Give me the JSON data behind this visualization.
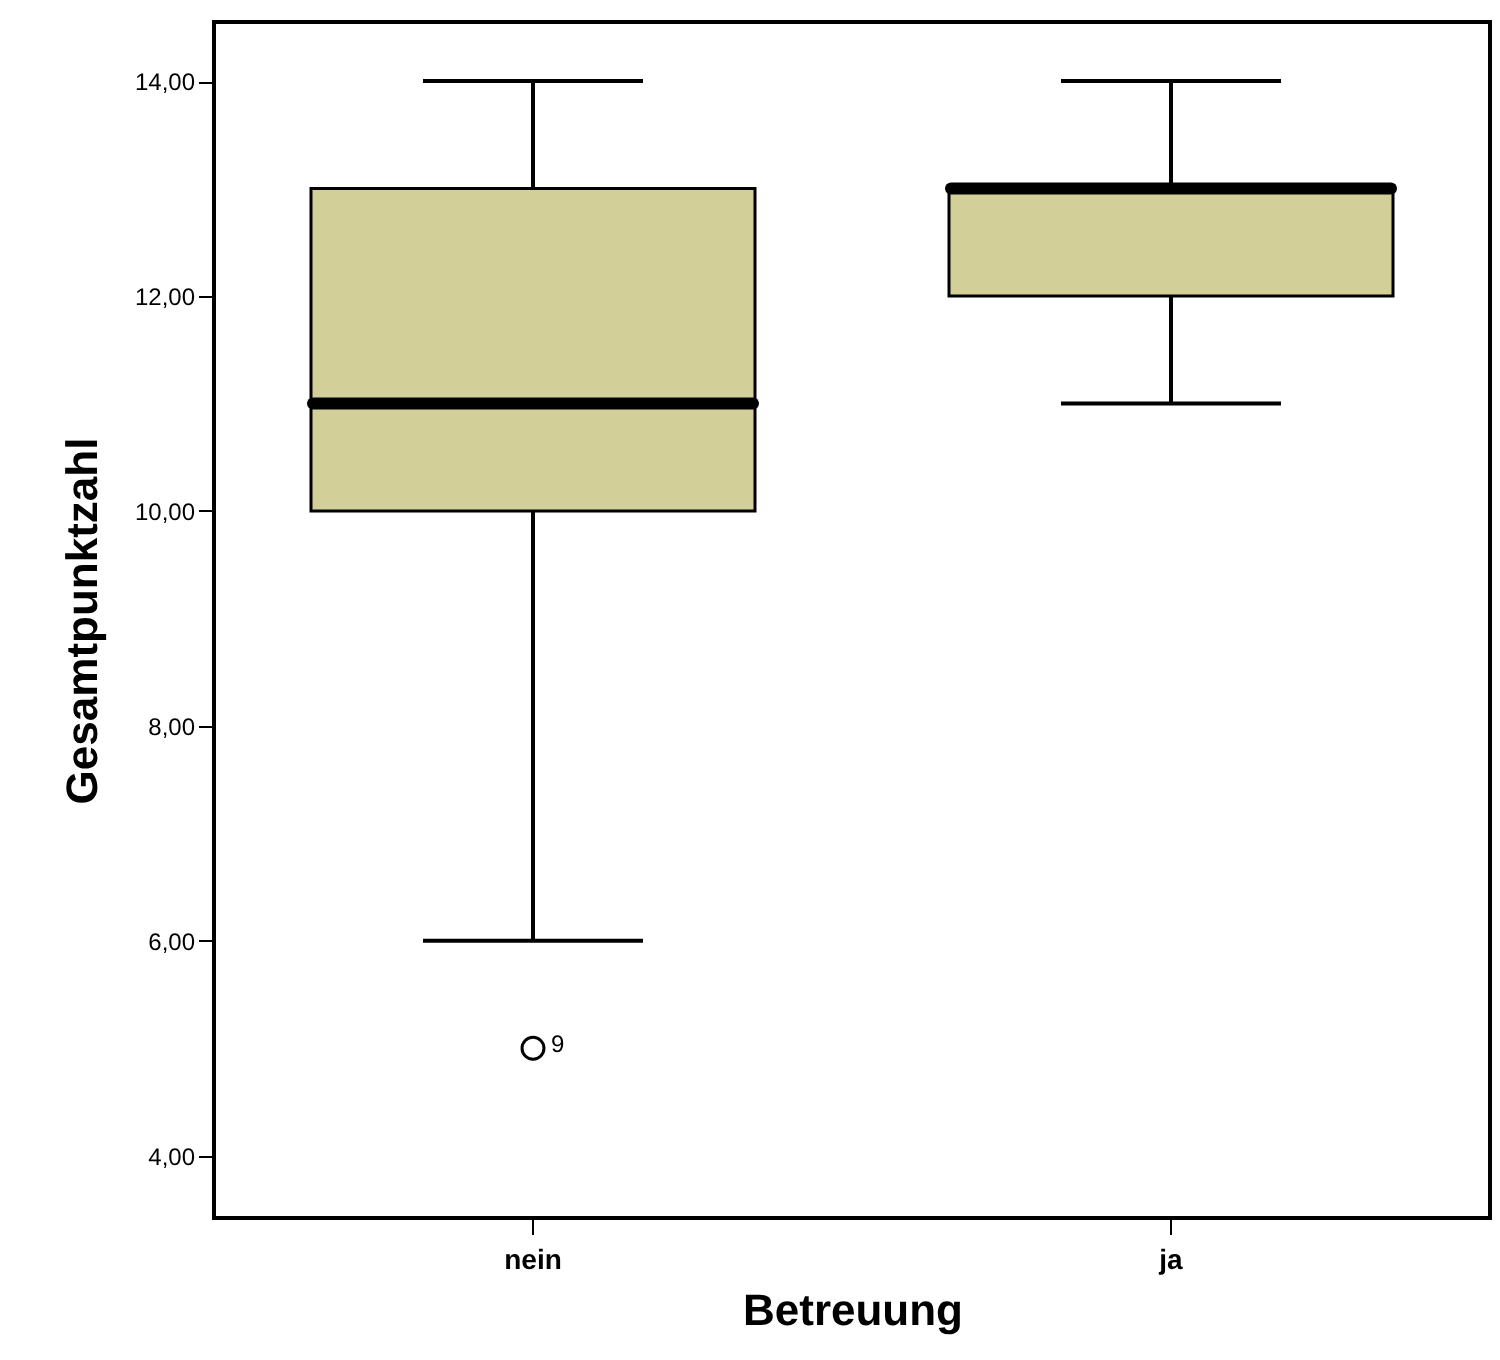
{
  "chart_data": {
    "type": "box",
    "xlabel": "Betreuung",
    "ylabel": "Gesamtpunktzahl",
    "categories": [
      "nein",
      "ja"
    ],
    "series": [
      {
        "color": "#d3cf98",
        "boxes": [
          {
            "low": 6,
            "q1": 10,
            "median": 11,
            "q3": 13,
            "high": 14,
            "outliers": [
              5
            ]
          },
          {
            "low": 11,
            "q1": 12,
            "median": 13,
            "q3": 13,
            "high": 14
          }
        ]
      }
    ],
    "annotations": [
      "9"
    ],
    "ylim": [
      3.42,
      14.55
    ],
    "yticks": [
      {
        "value": 4,
        "label": "4,00"
      },
      {
        "value": 6,
        "label": "6,00"
      },
      {
        "value": 8,
        "label": "8,00"
      },
      {
        "value": 10,
        "label": "10,00"
      },
      {
        "value": 12,
        "label": "12,00"
      },
      {
        "value": 14,
        "label": "14,00"
      }
    ],
    "grid": false
  }
}
